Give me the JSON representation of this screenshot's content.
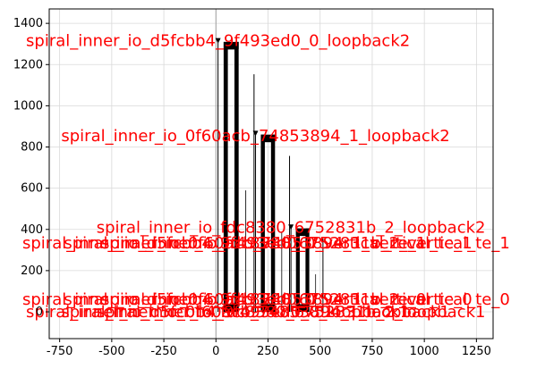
{
  "chart_data": {
    "type": "line",
    "title": "",
    "xlabel": "",
    "ylabel": "",
    "xlim": [
      -800,
      1330
    ],
    "ylim": [
      -130,
      1470
    ],
    "grid": true,
    "x_ticks": [
      -750,
      -500,
      -250,
      0,
      250,
      500,
      750,
      1000,
      1250
    ],
    "y_ticks": [
      0,
      200,
      400,
      600,
      800,
      1000,
      1200,
      1400
    ],
    "colors": {
      "paths": "#000000",
      "labels": "#ff0000",
      "grid": "#d9d9d9",
      "axis_zero": "#a0a0a0"
    },
    "spirals": [
      {
        "name": "spiral_inner_io_d5fcbb4_9f493ed0_0",
        "x_start": 10,
        "x_end": 190,
        "height": 1310
      },
      {
        "name": "spiral_inner_io_0f60acb_74853894_1",
        "x_start": 190,
        "x_end": 360,
        "height": 860
      },
      {
        "name": "spiral_inner_io_fdc8380_6752831b_2",
        "x_start": 360,
        "x_end": 520,
        "height": 405
      }
    ],
    "annotations": [
      {
        "text": "spiral_inner_io_d5fcbb4_9f493ed0_0_loopback2",
        "x": 10,
        "y": 1315
      },
      {
        "text": "spiral_inner_io_0f60acb_74853894_1_loopback2",
        "x": 190,
        "y": 855
      },
      {
        "text": "spiral_inner_io_fdc8380_6752831b_2_loopback2",
        "x": 360,
        "y": 410
      },
      {
        "text": "spiral_inner_io_fdc8380_6752831b_2_loopback1",
        "x": 360,
        "y": 0
      },
      {
        "text": "spiral_inner_io_0f60acb_74853894_1_loopback1",
        "x": 190,
        "y": 0
      },
      {
        "text": "spiral_inner_io_d5fcbb4_9f493ed0_0_loopback1",
        "x": 10,
        "y": 0
      },
      {
        "text": "spiral_inner_io_d5fcbb4_9f493ed0_0_vertical_te_1",
        "x": 40,
        "y": 335
      },
      {
        "text": "spiral_inner_io_0f60acb_74853894_1_vertical_te_1",
        "x": 250,
        "y": 335
      },
      {
        "text": "spiral_inner_io_fdc8380_6752831b_2_vertical_te_1",
        "x": 430,
        "y": 335
      },
      {
        "text": "spiral_inner_io_d5fcbb4_9f493ed0_0_vertical_te_0",
        "x": 40,
        "y": 60
      },
      {
        "text": "spiral_inner_io_0f60acb_74853894_1_vertical_te_0",
        "x": 250,
        "y": 60
      },
      {
        "text": "spiral_inner_io_fdc8380_6752831b_2_vertical_te_0",
        "x": 430,
        "y": 60
      }
    ]
  }
}
